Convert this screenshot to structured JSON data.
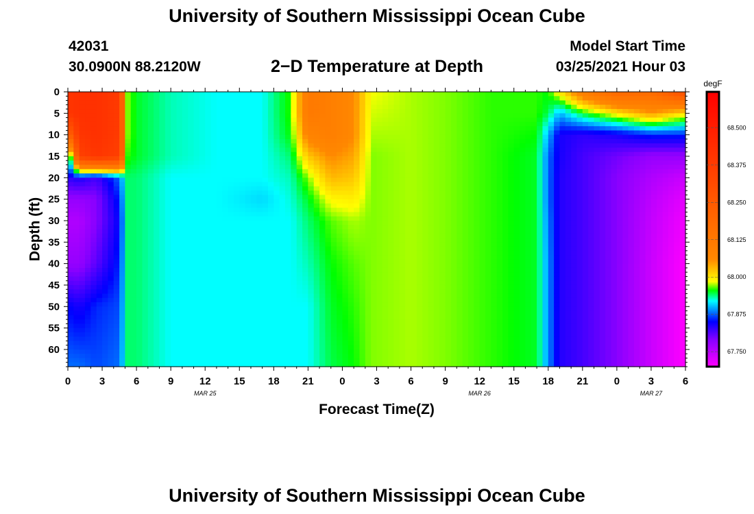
{
  "header": {
    "title": "University of Southern Mississippi Ocean Cube",
    "station_id": "42031",
    "station_coords": "30.0900N 88.2120W",
    "plot_title": "2−D Temperature at Depth",
    "model_start_label": "Model Start Time",
    "model_start_time": "03/25/2021 Hour 03"
  },
  "footer": {
    "title": "University of Southern Mississippi Ocean Cube"
  },
  "chart_data": {
    "type": "heatmap",
    "xlabel": "Forecast Time(Z)",
    "ylabel": "Depth (ft)",
    "x_range_hours": [
      0,
      54
    ],
    "y_range_ft": [
      0,
      64
    ],
    "x_tick_labels": [
      "0",
      "3",
      "6",
      "9",
      "12",
      "15",
      "18",
      "21",
      "0",
      "3",
      "6",
      "9",
      "12",
      "15",
      "18",
      "21",
      "0",
      "3",
      "6"
    ],
    "y_ticks": [
      0,
      5,
      10,
      15,
      20,
      25,
      30,
      35,
      40,
      45,
      50,
      55,
      60
    ],
    "date_labels": [
      {
        "text": "MAR 25",
        "hour": 12
      },
      {
        "text": "MAR 26",
        "hour": 36
      },
      {
        "text": "MAR 27",
        "hour": 51
      }
    ],
    "colorbar": {
      "unit": "degF",
      "min": 67.7,
      "max": 68.62,
      "tick_values": [
        67.75,
        67.875,
        68.0,
        68.125,
        68.25,
        68.375,
        68.5
      ],
      "tick_labels": [
        "67.750",
        "67.875",
        "68.000",
        "68.125",
        "68.250",
        "68.375",
        "68.500"
      ],
      "color_stops": [
        {
          "value": 67.7,
          "color": "#ff00ff"
        },
        {
          "value": 67.79,
          "color": "#8800ff"
        },
        {
          "value": 67.85,
          "color": "#0000ff"
        },
        {
          "value": 67.92,
          "color": "#00ffff"
        },
        {
          "value": 67.955,
          "color": "#00ff00"
        },
        {
          "value": 67.985,
          "color": "#ffff00"
        },
        {
          "value": 68.06,
          "color": "#ff8800"
        },
        {
          "value": 68.62,
          "color": "#ff0000"
        }
      ]
    },
    "field_points": {
      "depths_ft": [
        0,
        5,
        10,
        15,
        20,
        25,
        30,
        40,
        50,
        64
      ],
      "profiles": [
        {
          "hour": 0,
          "temps": [
            68.4,
            68.4,
            68.2,
            67.85,
            67.83,
            67.78,
            67.76,
            67.78,
            67.85,
            67.88
          ]
        },
        {
          "hour": 1,
          "temps": [
            68.42,
            68.42,
            68.4,
            68.35,
            67.84,
            67.78,
            67.76,
            67.78,
            67.84,
            67.88
          ]
        },
        {
          "hour": 2.5,
          "temps": [
            68.42,
            68.42,
            68.42,
            68.4,
            67.82,
            67.79,
            67.79,
            67.81,
            67.86,
            67.87
          ]
        },
        {
          "hour": 4.5,
          "temps": [
            68.38,
            68.38,
            68.38,
            68.36,
            67.88,
            67.86,
            67.85,
            67.86,
            67.87,
            67.88
          ]
        },
        {
          "hour": 5.2,
          "temps": [
            67.97,
            67.97,
            67.97,
            67.96,
            67.94,
            67.94,
            67.94,
            67.94,
            67.94,
            67.94
          ]
        },
        {
          "hour": 6,
          "temps": [
            67.95,
            67.95,
            67.95,
            67.95,
            67.94,
            67.94,
            67.94,
            67.94,
            67.94,
            67.94
          ]
        },
        {
          "hour": 9,
          "temps": [
            67.93,
            67.93,
            67.93,
            67.93,
            67.92,
            67.92,
            67.92,
            67.92,
            67.92,
            67.92
          ]
        },
        {
          "hour": 13,
          "temps": [
            67.92,
            67.92,
            67.92,
            67.92,
            67.92,
            67.92,
            67.92,
            67.92,
            67.92,
            67.92
          ]
        },
        {
          "hour": 17,
          "temps": [
            67.92,
            67.92,
            67.92,
            67.92,
            67.92,
            67.91,
            67.92,
            67.92,
            67.92,
            67.92
          ]
        },
        {
          "hour": 19.5,
          "temps": [
            67.96,
            67.96,
            67.955,
            67.94,
            67.93,
            67.925,
            67.92,
            67.92,
            67.92,
            67.92
          ]
        },
        {
          "hour": 21,
          "temps": [
            68.12,
            68.12,
            68.08,
            68.02,
            67.97,
            67.95,
            67.94,
            67.93,
            67.92,
            67.92
          ]
        },
        {
          "hour": 23,
          "temps": [
            68.1,
            68.1,
            68.1,
            68.06,
            68.03,
            67.99,
            67.965,
            67.955,
            67.95,
            67.945
          ]
        },
        {
          "hour": 25,
          "temps": [
            68.06,
            68.06,
            68.06,
            68.04,
            68.02,
            67.995,
            67.975,
            67.965,
            67.96,
            67.955
          ]
        },
        {
          "hour": 26.5,
          "temps": [
            67.985,
            67.98,
            67.975,
            67.97,
            67.97,
            67.97,
            67.97,
            67.97,
            67.97,
            67.97
          ]
        },
        {
          "hour": 30,
          "temps": [
            67.975,
            67.975,
            67.975,
            67.975,
            67.975,
            67.975,
            67.975,
            67.975,
            67.975,
            67.975
          ]
        },
        {
          "hour": 33,
          "temps": [
            67.97,
            67.97,
            67.97,
            67.97,
            67.97,
            67.97,
            67.97,
            67.97,
            67.97,
            67.97
          ]
        },
        {
          "hour": 37,
          "temps": [
            67.96,
            67.96,
            67.96,
            67.96,
            67.96,
            67.96,
            67.96,
            67.96,
            67.96,
            67.96
          ]
        },
        {
          "hour": 41,
          "temps": [
            67.96,
            67.96,
            67.955,
            67.95,
            67.95,
            67.95,
            67.95,
            67.95,
            67.95,
            67.95
          ]
        },
        {
          "hour": 42,
          "temps": [
            67.955,
            67.945,
            67.9,
            67.88,
            67.88,
            67.88,
            67.885,
            67.89,
            67.89,
            67.89
          ]
        },
        {
          "hour": 43,
          "temps": [
            68.0,
            67.9,
            67.84,
            67.84,
            67.835,
            67.835,
            67.835,
            67.835,
            67.835,
            67.835
          ]
        },
        {
          "hour": 45,
          "temps": [
            68.1,
            67.95,
            67.83,
            67.82,
            67.82,
            67.82,
            67.82,
            67.82,
            67.82,
            67.82
          ]
        },
        {
          "hour": 48,
          "temps": [
            68.2,
            68.0,
            67.84,
            67.8,
            67.79,
            67.79,
            67.79,
            67.79,
            67.79,
            67.79
          ]
        },
        {
          "hour": 51,
          "temps": [
            68.18,
            68.05,
            67.86,
            67.78,
            67.76,
            67.75,
            67.745,
            67.74,
            67.74,
            67.74
          ]
        },
        {
          "hour": 54,
          "temps": [
            68.3,
            68.0,
            67.86,
            67.78,
            67.74,
            67.72,
            67.71,
            67.7,
            67.7,
            67.7
          ]
        }
      ]
    }
  }
}
